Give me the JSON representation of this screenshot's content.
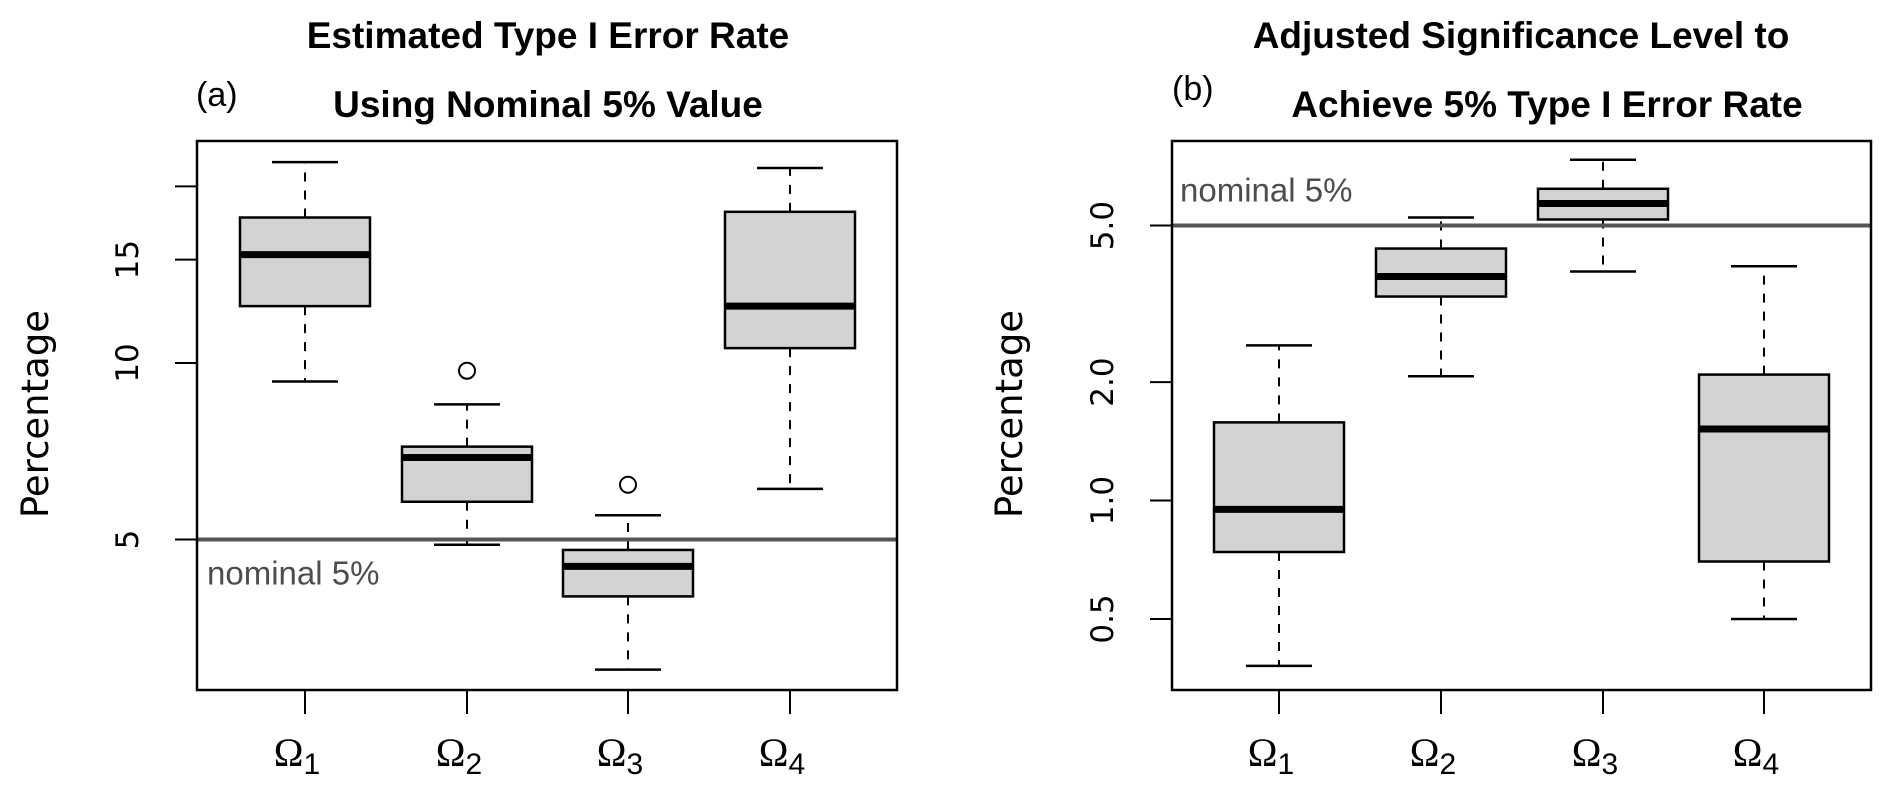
{
  "figure": {
    "panels": [
      {
        "tag": "(a)",
        "title_line1": "Estimated Type I Error Rate",
        "title_line2": "Using Nominal 5% Value",
        "ylabel": "Percentage",
        "reference_label": "nominal 5%"
      },
      {
        "tag": "(b)",
        "title_line1": "Adjusted Significance Level to",
        "title_line2": "Achieve 5% Type I Error Rate",
        "ylabel": "Percentage",
        "reference_label": "nominal 5%"
      }
    ]
  },
  "chart_data": [
    {
      "type": "box",
      "panel": "(a)",
      "title": "Estimated Type I Error Rate Using Nominal 5% Value",
      "xlabel": "",
      "ylabel": "Percentage",
      "yscale": "log",
      "ylim": [
        2.77,
        23.9
      ],
      "yticks": [
        5,
        10,
        15,
        20
      ],
      "ytick_labels": [
        "5",
        "10",
        "15",
        ""
      ],
      "categories": [
        {
          "symbol": "Ω",
          "sub": "1"
        },
        {
          "symbol": "Ω",
          "sub": "2"
        },
        {
          "symbol": "Ω",
          "sub": "3"
        },
        {
          "symbol": "Ω",
          "sub": "4"
        }
      ],
      "boxes": [
        {
          "whisker_low": 9.3,
          "q1": 12.5,
          "median": 15.3,
          "q3": 17.7,
          "whisker_high": 22.0,
          "outliers": []
        },
        {
          "whisker_low": 4.9,
          "q1": 5.8,
          "median": 6.9,
          "q3": 7.2,
          "whisker_high": 8.5,
          "outliers": [
            9.7
          ]
        },
        {
          "whisker_low": 3.0,
          "q1": 4.0,
          "median": 4.5,
          "q3": 4.8,
          "whisker_high": 5.5,
          "outliers": [
            6.2
          ]
        },
        {
          "whisker_low": 6.1,
          "q1": 10.6,
          "median": 12.5,
          "q3": 18.1,
          "whisker_high": 21.5,
          "outliers": []
        }
      ],
      "reference_line": {
        "value": 5,
        "label": "nominal 5%",
        "label_position": "below-left",
        "color": "#555555"
      },
      "box_fill": "#d3d3d3",
      "grid": false
    },
    {
      "type": "box",
      "panel": "(b)",
      "title": "Adjusted Significance Level to Achieve 5% Type I Error Rate",
      "xlabel": "",
      "ylabel": "Percentage",
      "yscale": "log",
      "ylim": [
        0.33,
        8.2
      ],
      "yticks": [
        0.5,
        1.0,
        2.0,
        5.0
      ],
      "ytick_labels": [
        "0.5",
        "1.0",
        "2.0",
        "5.0"
      ],
      "categories": [
        {
          "symbol": "Ω",
          "sub": "1"
        },
        {
          "symbol": "Ω",
          "sub": "2"
        },
        {
          "symbol": "Ω",
          "sub": "3"
        },
        {
          "symbol": "Ω",
          "sub": "4"
        }
      ],
      "boxes": [
        {
          "whisker_low": 0.38,
          "q1": 0.74,
          "median": 0.95,
          "q3": 1.58,
          "whisker_high": 2.48,
          "outliers": []
        },
        {
          "whisker_low": 2.07,
          "q1": 3.3,
          "median": 3.71,
          "q3": 4.37,
          "whisker_high": 5.24,
          "outliers": []
        },
        {
          "whisker_low": 3.82,
          "q1": 5.18,
          "median": 5.69,
          "q3": 6.2,
          "whisker_high": 7.35,
          "outliers": []
        },
        {
          "whisker_low": 0.5,
          "q1": 0.7,
          "median": 1.52,
          "q3": 2.09,
          "whisker_high": 3.94,
          "outliers": []
        }
      ],
      "reference_line": {
        "value": 5.0,
        "label": "nominal 5%",
        "label_position": "above-left",
        "color": "#555555"
      },
      "box_fill": "#d3d3d3",
      "grid": false
    }
  ]
}
